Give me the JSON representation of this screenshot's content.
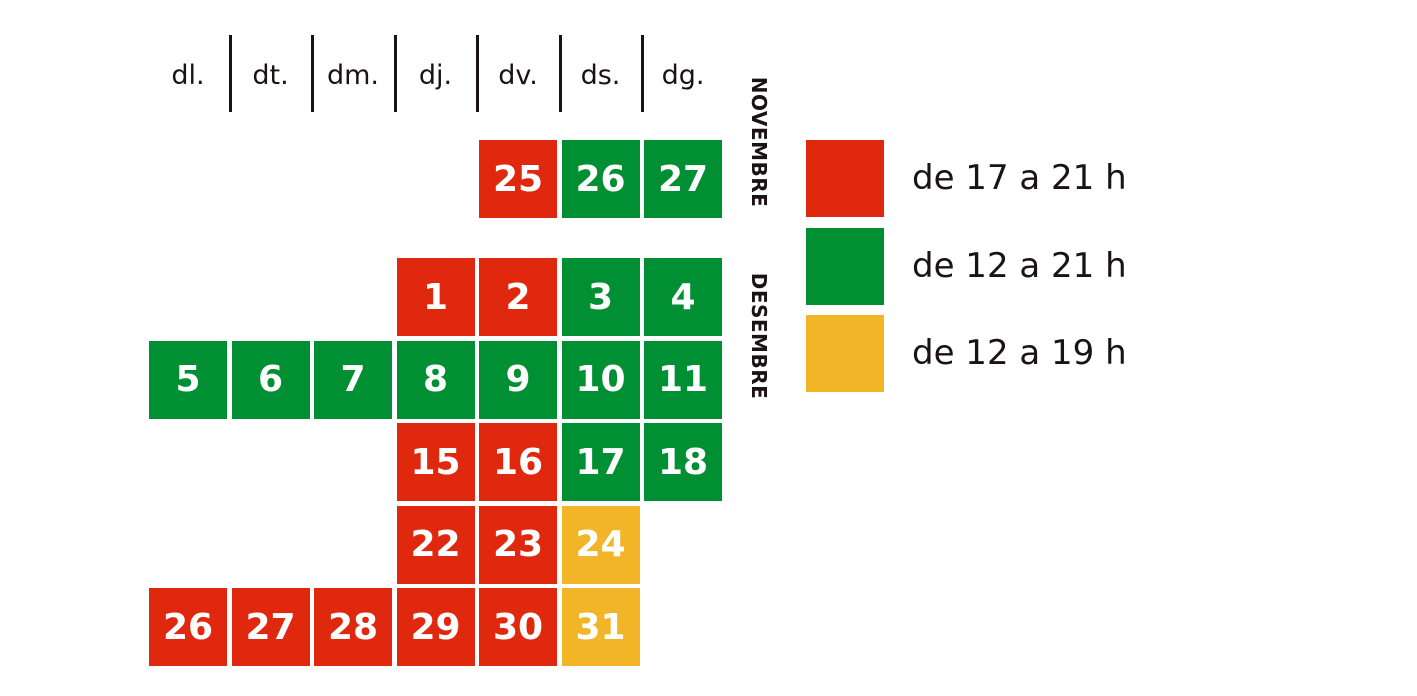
{
  "weekdays": [
    "dl.",
    "dt.",
    "dm.",
    "dj.",
    "dv.",
    "ds.",
    "dg."
  ],
  "months": [
    {
      "name": "NOVEMBRE",
      "weeks": [
        [
          null,
          null,
          null,
          null,
          {
            "label": "25",
            "color": "#e0280f"
          },
          {
            "label": "26",
            "color": "#008f32"
          },
          {
            "label": "27",
            "color": "#008f32"
          }
        ]
      ]
    },
    {
      "name": "DESEMBRE",
      "weeks": [
        [
          null,
          null,
          null,
          {
            "label": "1",
            "color": "#e0280f"
          },
          {
            "label": "2",
            "color": "#e0280f"
          },
          {
            "label": "3",
            "color": "#008f32"
          },
          {
            "label": "4",
            "color": "#008f32"
          }
        ],
        [
          {
            "label": "5",
            "color": "#008f32"
          },
          {
            "label": "6",
            "color": "#008f32"
          },
          {
            "label": "7",
            "color": "#008f32"
          },
          {
            "label": "8",
            "color": "#008f32"
          },
          {
            "label": "9",
            "color": "#008f32"
          },
          {
            "label": "10",
            "color": "#008f32"
          },
          {
            "label": "11",
            "color": "#008f32"
          }
        ],
        [
          null,
          null,
          null,
          {
            "label": "15",
            "color": "#e0280f"
          },
          {
            "label": "16",
            "color": "#e0280f"
          },
          {
            "label": "17",
            "color": "#008f32"
          },
          {
            "label": "18",
            "color": "#008f32"
          }
        ],
        [
          null,
          null,
          null,
          {
            "label": "22",
            "color": "#e0280f"
          },
          {
            "label": "23",
            "color": "#e0280f"
          },
          {
            "label": "24",
            "color": "#f2b527"
          },
          null
        ],
        [
          {
            "label": "26",
            "color": "#e0280f"
          },
          {
            "label": "27",
            "color": "#e0280f"
          },
          {
            "label": "28",
            "color": "#e0280f"
          },
          {
            "label": "29",
            "color": "#e0280f"
          },
          {
            "label": "30",
            "color": "#e0280f"
          },
          {
            "label": "31",
            "color": "#f2b527"
          },
          null
        ]
      ]
    }
  ],
  "legend": [
    {
      "label": "de 17 a 21 h",
      "color": "#e0280f"
    },
    {
      "label": "de 12 a 21 h",
      "color": "#008f32"
    },
    {
      "label": "de 12 a 19 h",
      "color": "#f2b527"
    }
  ]
}
